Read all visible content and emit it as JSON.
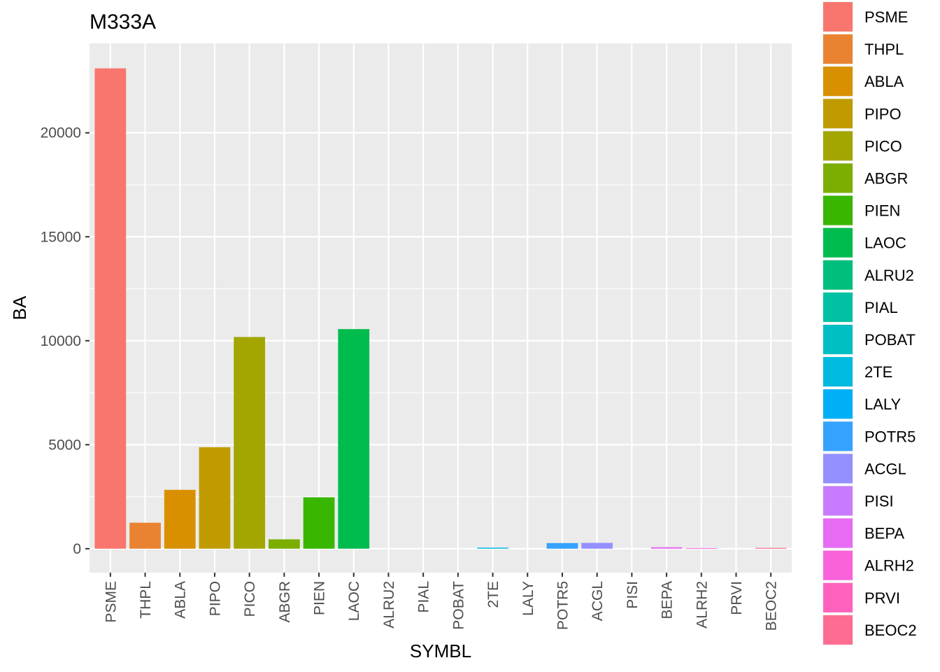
{
  "chart_data": {
    "type": "bar",
    "title": "M333A",
    "xlabel": "SYMBL",
    "ylabel": "BA",
    "categories": [
      "PSME",
      "THPL",
      "ABLA",
      "PIPO",
      "PICO",
      "ABGR",
      "PIEN",
      "LAOC",
      "ALRU2",
      "PIAL",
      "POBAT",
      "2TE",
      "LALY",
      "POTR5",
      "ACGL",
      "PISI",
      "BEPA",
      "ALRH2",
      "PRVI",
      "BEOC2"
    ],
    "values": [
      23100,
      1250,
      2830,
      4880,
      10180,
      450,
      2470,
      10560,
      0,
      0,
      0,
      50,
      0,
      270,
      280,
      0,
      70,
      30,
      0,
      40
    ],
    "colors": [
      "#F8766D",
      "#EA8331",
      "#D89000",
      "#C09B00",
      "#A3A500",
      "#7CAE00",
      "#39B600",
      "#00BB4E",
      "#00BF7D",
      "#00C1A3",
      "#00BFC4",
      "#00BAE0",
      "#00B0F6",
      "#35A2FF",
      "#9590FF",
      "#C77CFF",
      "#E76BF3",
      "#FA62DB",
      "#FF62BC",
      "#FF6C91"
    ],
    "yticks": [
      0,
      5000,
      10000,
      15000,
      20000
    ],
    "ylim": [
      -1150,
      24300
    ],
    "grid": true,
    "legend": {
      "position": "right",
      "entries": [
        "PSME",
        "THPL",
        "ABLA",
        "PIPO",
        "PICO",
        "ABGR",
        "PIEN",
        "LAOC",
        "ALRU2",
        "PIAL",
        "POBAT",
        "2TE",
        "LALY",
        "POTR5",
        "ACGL",
        "PISI",
        "BEPA",
        "ALRH2",
        "PRVI",
        "BEOC2"
      ]
    }
  }
}
